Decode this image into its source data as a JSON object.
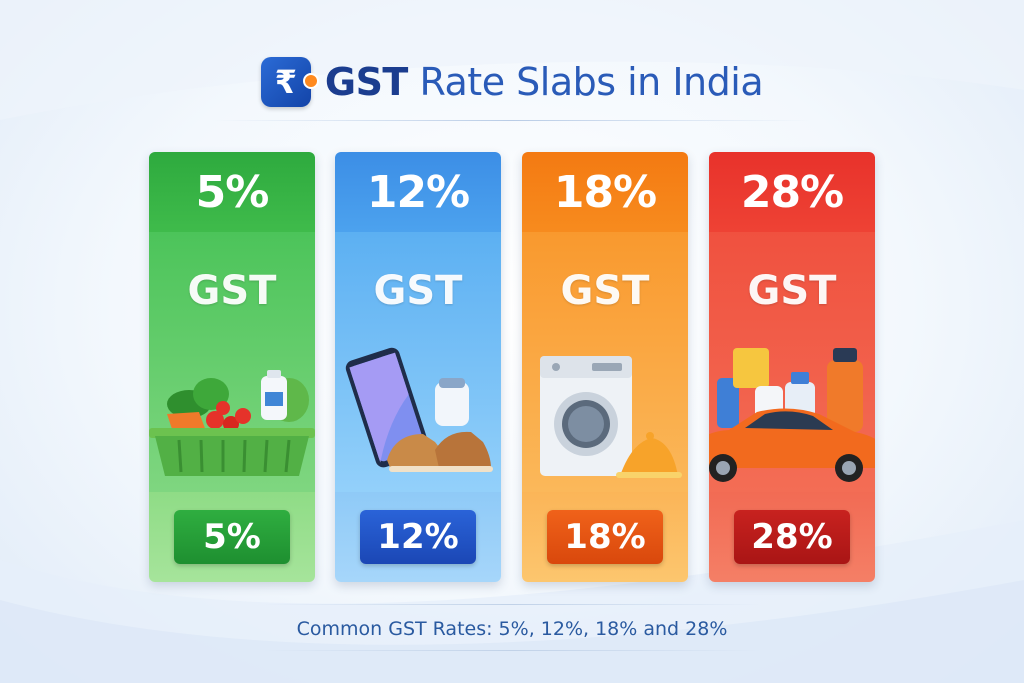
{
  "header": {
    "logo_glyph": "₹",
    "title_strong": "GST",
    "title_rest": "Rate Slabs in India"
  },
  "slabs": [
    {
      "rate": "5%",
      "label": "GST",
      "badge": "5%",
      "theme": "green",
      "icon": "grocery-basket-icon"
    },
    {
      "rate": "12%",
      "label": "GST",
      "badge": "12%",
      "theme": "blue",
      "icon": "smartphone-shoes-icon"
    },
    {
      "rate": "18%",
      "label": "GST",
      "badge": "18%",
      "theme": "orange",
      "icon": "washing-machine-icon"
    },
    {
      "rate": "28%",
      "label": "GST",
      "badge": "28%",
      "theme": "red",
      "icon": "car-cosmetics-icon"
    }
  ],
  "footer": {
    "text": "Common GST Rates: 5%, 12%, 18% and 28%"
  },
  "colors": {
    "green": "#3fbb4b",
    "blue": "#4ca2ee",
    "orange": "#f78b1e",
    "red": "#ee4234",
    "title": "#1b4fa8"
  }
}
